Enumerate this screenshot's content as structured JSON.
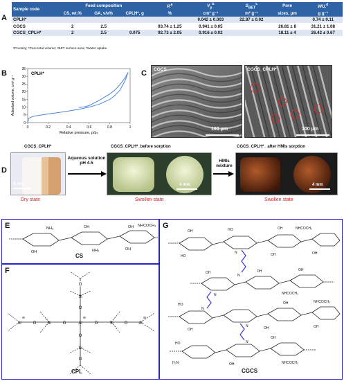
{
  "panel_letters": {
    "a": "A",
    "b": "B",
    "c": "C",
    "d": "D",
    "e": "E",
    "f": "F",
    "g": "G"
  },
  "table": {
    "h_sample": "Sample code",
    "h_feed": "Feed composition",
    "h_cs": "CS, wt.%",
    "h_ga": "GA, v/v%",
    "h_cplh": "CPLH*, g",
    "h_p": "P,",
    "h_p_sup": "a",
    "h_p_unit": "%",
    "h_v": "V",
    "h_v_sub": "p",
    "h_v_sup": "b",
    "h_v_unit": "cm³ g⁻¹",
    "h_s": "S",
    "h_s_sub": "BET",
    "h_s_sup": "c",
    "h_s_unit": "m² g⁻¹",
    "h_pore": "Pore",
    "h_pore_unit": "sizes, μm",
    "h_wu": "WU,",
    "h_wu_sup": "d",
    "h_wu_unit": "g g⁻¹",
    "rows": [
      {
        "code": "CPLH*",
        "cs": "",
        "ga": "",
        "cplh": "",
        "p": "",
        "v": "0.042 ± 0.003",
        "s": "22.87 ± 0.02",
        "pore": "",
        "wu": "0.74 ± 0.11"
      },
      {
        "code": "CGCS",
        "cs": "2",
        "ga": "2.5",
        "cplh": "",
        "p": "93.74 ± 1.25",
        "v": "0.941 ± 0.05",
        "s": "",
        "pore": "26.81 ± 8",
        "wu": "31.21 ± 1.08"
      },
      {
        "code": "CGCS_CPLH*",
        "cs": "2",
        "ga": "2.5",
        "cplh": "0.075",
        "p": "92.73 ± 2.05",
        "v": "0.916 ± 0.02",
        "s": "",
        "pore": "18.11 ± 4",
        "wu": "26.42 ± 0.67"
      }
    ],
    "footnote": "ᵃPorosity; ᵇPore total volume; ᶜBET surface area; ᵈWater uptake."
  },
  "chart_data": {
    "type": "line",
    "title": "CPLH*",
    "xlabel": "Relative pressure, p/p₀",
    "ylabel": "Adsorbed volume, cm³ g⁻¹",
    "xlim": [
      0,
      1
    ],
    "ylim": [
      0,
      35
    ],
    "xticks": [
      "0",
      "0.2",
      "0.4",
      "0.6",
      "0.8",
      "1"
    ],
    "yticks": [
      "0",
      "5",
      "10",
      "15",
      "20",
      "25",
      "30",
      "35"
    ],
    "series": [
      {
        "x": [
          0.0,
          0.01,
          0.05,
          0.1,
          0.2,
          0.3,
          0.4,
          0.5,
          0.6,
          0.7,
          0.8,
          0.85,
          0.9,
          0.95,
          0.98
        ],
        "y": [
          0,
          2.8,
          4.0,
          4.6,
          5.6,
          6.5,
          7.5,
          8.6,
          10.0,
          12.0,
          15.0,
          17.5,
          21.0,
          27.0,
          32.5
        ]
      },
      {
        "x": [
          0.98,
          0.95,
          0.9,
          0.85,
          0.8,
          0.7,
          0.6,
          0.55,
          0.5
        ],
        "y": [
          32.5,
          29.0,
          24.5,
          21.0,
          18.5,
          14.5,
          11.0,
          10.2,
          9.8
        ]
      }
    ]
  },
  "sem": {
    "left_label": "CGCS",
    "right_label": "CGCS_CPLH*",
    "scale_left": "100 μm",
    "scale_right": "100 μm"
  },
  "photos": {
    "p1_label": "CGCS_CPLH*",
    "p2_label": "CGCS_CPLH*_before sorption",
    "p3_label": "CGCS_CPLH*_ after HMIs sorption",
    "arrow1": "Aqueous solution pH 4.5",
    "arrow2": "HMIs mixture",
    "state1": "Dry state",
    "state2": "Swollen state",
    "state3": "Swollen state",
    "mm": "4 mm"
  },
  "chem": {
    "e_name": "CS",
    "f_name": "CPL",
    "g_name": "CGCS",
    "nh2": "NH₂",
    "oh": "OH",
    "ho": "HO",
    "nhcoch3": "NHCOCH₃",
    "o": "O",
    "si": "Si",
    "al": "Al",
    "n": "N",
    "minus": "⊖",
    "h2n": "H₂N"
  },
  "colors": {
    "header": "#2e64a6",
    "rowA": "#dde6f2",
    "box": "#2424c8",
    "red": "#d62020",
    "curve": "#4a86d8"
  }
}
